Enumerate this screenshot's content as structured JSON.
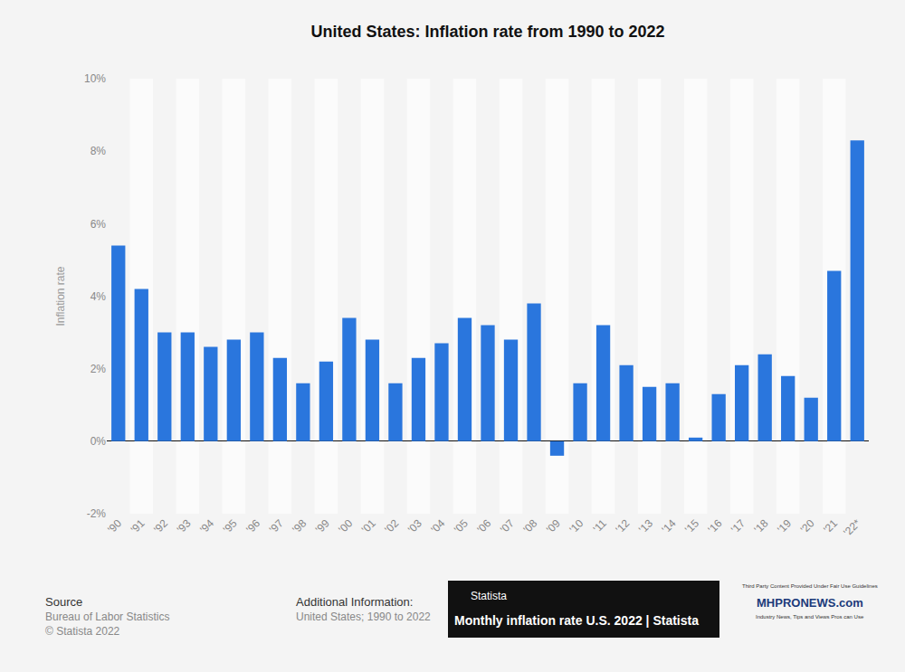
{
  "chart_data": {
    "type": "bar",
    "title": "United States: Inflation rate from 1990 to 2022",
    "y_label": "Inflation rate",
    "categories": [
      "'90",
      "'91",
      "'92",
      "'93",
      "'94",
      "'95",
      "'96",
      "'97",
      "'98",
      "'99",
      "'00",
      "'01",
      "'02",
      "'03",
      "'04",
      "'05",
      "'06",
      "'07",
      "'08",
      "'09",
      "'10",
      "'11",
      "'12",
      "'13",
      "'14",
      "'15",
      "'16",
      "'17",
      "'18",
      "'19",
      "'20",
      "'21",
      "'22*"
    ],
    "values": [
      5.4,
      4.2,
      3.0,
      3.0,
      2.6,
      2.8,
      3.0,
      2.3,
      1.6,
      2.2,
      3.4,
      2.8,
      1.6,
      2.3,
      2.7,
      3.4,
      3.2,
      2.8,
      3.8,
      -0.4,
      1.6,
      3.2,
      2.1,
      1.5,
      1.6,
      0.1,
      1.3,
      2.1,
      2.4,
      1.8,
      1.2,
      4.7,
      8.3
    ],
    "color": "#2a76dd",
    "ylim": [
      -2,
      10
    ],
    "yticks": [
      {
        "value": -2,
        "label": "-2%"
      },
      {
        "value": 0,
        "label": "0%"
      },
      {
        "value": 2,
        "label": "2%"
      },
      {
        "value": 4,
        "label": "4%"
      },
      {
        "value": 6,
        "label": "6%"
      },
      {
        "value": 8,
        "label": "8%"
      },
      {
        "value": 10,
        "label": "10%"
      }
    ],
    "grid": false,
    "annotations": [
      "Source",
      "Bureau of Labor Statistics",
      "© Statista 2022",
      "Additional Information:",
      "United States; 1990 to 2022",
      "Statista",
      "Monthly inflation rate U.S. 2022 | Statista",
      "Third Party Content Provided Under Fair Use Guidelines",
      "MHPRONEWS.com",
      "Industry News, Tips and Views Pros can Use"
    ]
  }
}
